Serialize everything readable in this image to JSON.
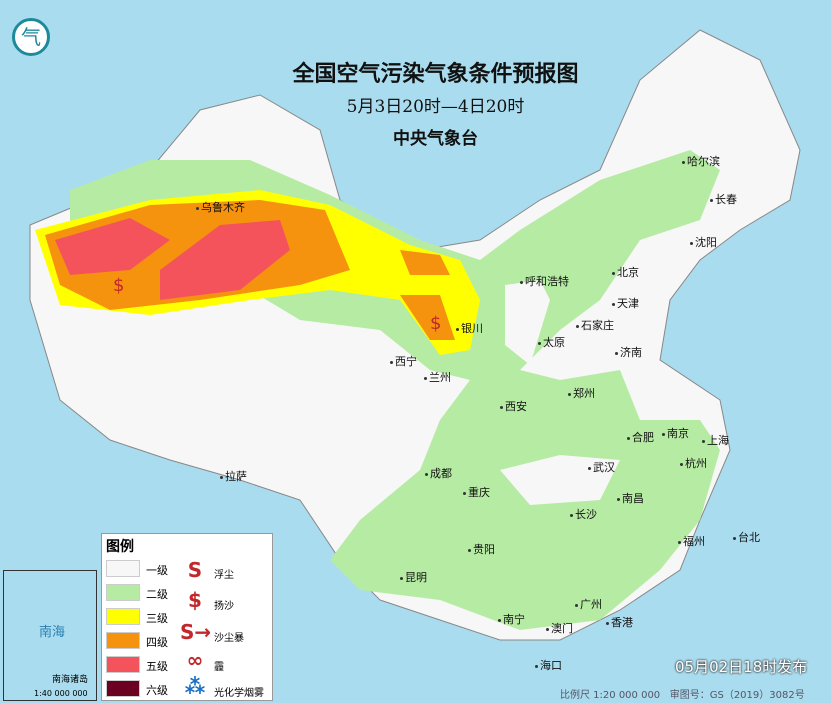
{
  "header": {
    "title": "全国空气污染气象条件预报图",
    "time_range": "5月3日20时—4日20时",
    "issuer": "中央气象台"
  },
  "colors": {
    "level1": "#f7f7f7",
    "level2": "#b6eba4",
    "level3": "#ffff00",
    "level4": "#f5930f",
    "level5": "#f5535b",
    "level6": "#6b0020",
    "sea": "#a9dcee"
  },
  "legend": {
    "title": "图例",
    "levels": [
      {
        "label": "一级"
      },
      {
        "label": "二级"
      },
      {
        "label": "三级"
      },
      {
        "label": "四级"
      },
      {
        "label": "五级"
      },
      {
        "label": "六级"
      }
    ],
    "symbols": [
      {
        "icon": "floating-dust-icon",
        "label": "浮尘"
      },
      {
        "icon": "blowing-sand-icon",
        "label": "扬沙"
      },
      {
        "icon": "sandstorm-icon",
        "label": "沙尘暴"
      },
      {
        "icon": "haze-icon",
        "label": "霾"
      },
      {
        "icon": "photochemical-smog-icon",
        "label": "光化学烟雾"
      }
    ]
  },
  "cities": [
    "乌鲁木齐",
    "哈尔滨",
    "长春",
    "沈阳",
    "呼和浩特",
    "北京",
    "天津",
    "石家庄",
    "太原",
    "济南",
    "银川",
    "西宁",
    "兰州",
    "郑州",
    "西安",
    "合肥",
    "南京",
    "上海",
    "杭州",
    "武汉",
    "成都",
    "重庆",
    "拉萨",
    "长沙",
    "南昌",
    "贵阳",
    "福州",
    "台北",
    "昆明",
    "南宁",
    "广州",
    "香港",
    "澳门",
    "海口"
  ],
  "inset": {
    "sea": "南海",
    "islands": "南海诸岛",
    "scale": "1:40 000 000"
  },
  "footer": {
    "issued": "05月02日18时发布",
    "scale": "比例尺 1:20 000 000",
    "map_number": "审图号：GS（2019）3082号"
  }
}
